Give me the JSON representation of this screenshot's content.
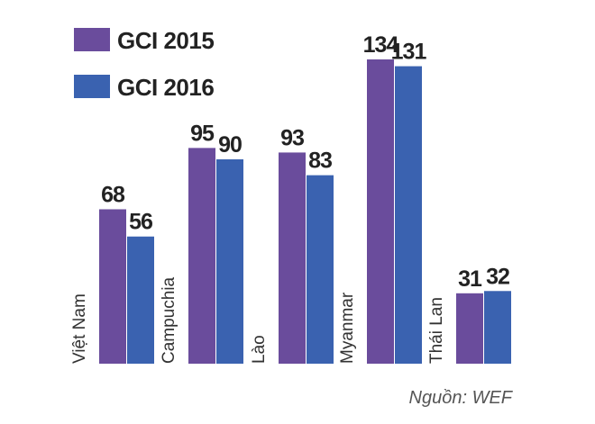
{
  "chart_data": {
    "type": "bar",
    "categories": [
      "Việt Nam",
      "Campuchia",
      "Lào",
      "Myanmar",
      "Thái Lan"
    ],
    "series": [
      {
        "name": "GCI 2015",
        "values": [
          68,
          95,
          93,
          134,
          31
        ]
      },
      {
        "name": "GCI 2016",
        "values": [
          56,
          90,
          83,
          131,
          32
        ]
      }
    ],
    "colors": [
      "#6a4c9c",
      "#3a62b0"
    ],
    "ylim": [
      0,
      140
    ],
    "grid": false,
    "legend_position": "top-left",
    "source": "Nguồn: WEF"
  }
}
